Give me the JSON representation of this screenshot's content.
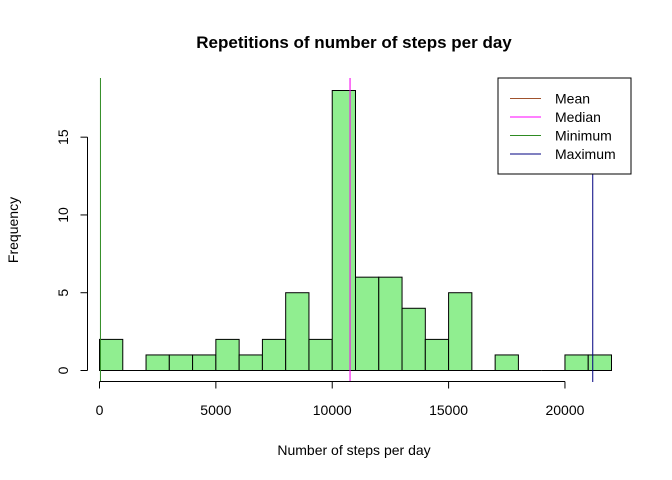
{
  "chart_data": {
    "type": "bar",
    "title": "Repetitions of number of steps per day",
    "xlabel": "Number of steps per day",
    "ylabel": "Frequency",
    "xlim": [
      0,
      22000
    ],
    "ylim": [
      0,
      18
    ],
    "x_ticks": [
      0,
      5000,
      10000,
      15000,
      20000
    ],
    "y_ticks": [
      0,
      5,
      10,
      15
    ],
    "bin_width": 1000,
    "bar_color": "#90ee90",
    "bins": [
      {
        "start": 0,
        "end": 1000,
        "count": 2
      },
      {
        "start": 1000,
        "end": 2000,
        "count": 0
      },
      {
        "start": 2000,
        "end": 3000,
        "count": 1
      },
      {
        "start": 3000,
        "end": 4000,
        "count": 1
      },
      {
        "start": 4000,
        "end": 5000,
        "count": 1
      },
      {
        "start": 5000,
        "end": 6000,
        "count": 2
      },
      {
        "start": 6000,
        "end": 7000,
        "count": 1
      },
      {
        "start": 7000,
        "end": 8000,
        "count": 2
      },
      {
        "start": 8000,
        "end": 9000,
        "count": 5
      },
      {
        "start": 9000,
        "end": 10000,
        "count": 2
      },
      {
        "start": 10000,
        "end": 11000,
        "count": 18
      },
      {
        "start": 11000,
        "end": 12000,
        "count": 6
      },
      {
        "start": 12000,
        "end": 13000,
        "count": 6
      },
      {
        "start": 13000,
        "end": 14000,
        "count": 4
      },
      {
        "start": 14000,
        "end": 15000,
        "count": 2
      },
      {
        "start": 15000,
        "end": 16000,
        "count": 5
      },
      {
        "start": 16000,
        "end": 17000,
        "count": 0
      },
      {
        "start": 17000,
        "end": 18000,
        "count": 1
      },
      {
        "start": 18000,
        "end": 19000,
        "count": 0
      },
      {
        "start": 19000,
        "end": 20000,
        "count": 0
      },
      {
        "start": 20000,
        "end": 21000,
        "count": 1
      },
      {
        "start": 21000,
        "end": 22000,
        "count": 1
      }
    ],
    "reference_lines": [
      {
        "name": "Mean",
        "value": 10766,
        "color": "#a0522d"
      },
      {
        "name": "Median",
        "value": 10765,
        "color": "#ff00ff"
      },
      {
        "name": "Minimum",
        "value": 41,
        "color": "#2e8b22"
      },
      {
        "name": "Maximum",
        "value": 21194,
        "color": "#000080"
      }
    ],
    "legend": {
      "position": "top-right",
      "entries": [
        {
          "name": "Mean",
          "color": "#a0522d"
        },
        {
          "name": "Median",
          "color": "#ff00ff"
        },
        {
          "name": "Minimum",
          "color": "#2e8b22"
        },
        {
          "name": "Maximum",
          "color": "#000080"
        }
      ]
    }
  }
}
